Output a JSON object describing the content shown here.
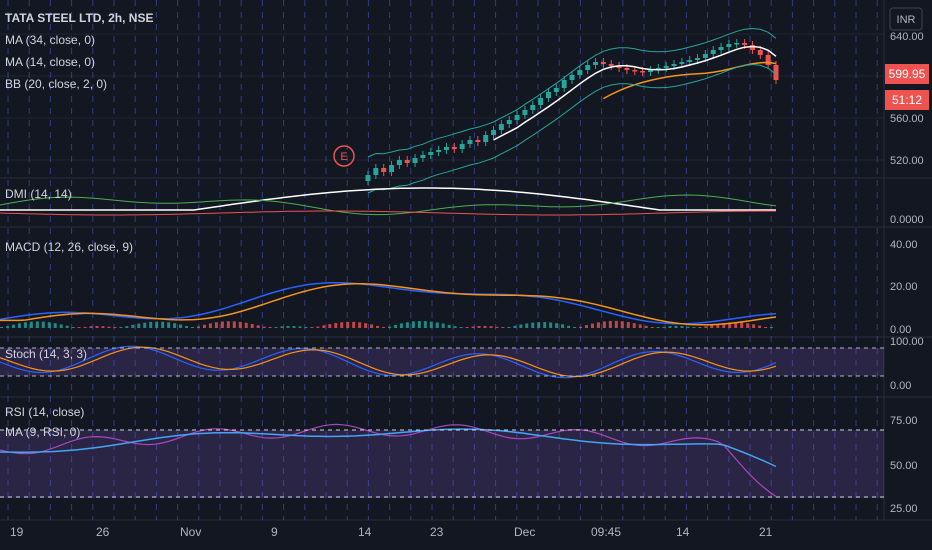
{
  "colors": {
    "bg": "#131722",
    "grid": "#2a2e39",
    "session": "#4a5bd6",
    "up": "#26a69a",
    "down": "#ef5350",
    "orange": "#f7931a",
    "blue": "#2962ff",
    "purple": "#7e57c2",
    "white": "#ffffff"
  },
  "chart_data": [
    {
      "type": "candlestick",
      "title": "TATA STEEL LTD, 2h, NSE",
      "indicators": [
        "MA (34, close, 0)",
        "MA (14, close, 0)",
        "BB (20, close, 2, 0)"
      ],
      "currency": "INR",
      "ylim": [
        500,
        650
      ],
      "yticks": [
        "640.00",
        "560.00",
        "520.00"
      ],
      "last_price": "599.95",
      "countdown": "51:12",
      "marker": "E",
      "closes": [
        505,
        512,
        508,
        515,
        520,
        517,
        522,
        525,
        528,
        530,
        533,
        531,
        536,
        540,
        538,
        545,
        550,
        556,
        560,
        565,
        570,
        575,
        582,
        588,
        592,
        600,
        605,
        610,
        615,
        618,
        616,
        614,
        612,
        610,
        609,
        608,
        610,
        612,
        614,
        616,
        618,
        620,
        622,
        626,
        630,
        633,
        636,
        637,
        635,
        630,
        625,
        615,
        600
      ]
    },
    {
      "type": "line",
      "title": "DMI (14, 14)",
      "ylim": [
        0,
        1
      ],
      "yticks": [
        "0.0000"
      ]
    },
    {
      "type": "bar+line",
      "title": "MACD (12, 26, close, 9)",
      "ylim": [
        0,
        45
      ],
      "yticks": [
        "40.00",
        "20.00",
        "0.00"
      ]
    },
    {
      "type": "line",
      "title": "Stoch (14, 3, 3)",
      "ylim": [
        0,
        100
      ],
      "yticks": [
        "100.00",
        "0.00"
      ]
    },
    {
      "type": "line",
      "title": "RSI (14, close)",
      "subtitle": "MA (9, RSI, 0)",
      "ylim": [
        20,
        85
      ],
      "yticks": [
        "75.00",
        "50.00",
        "25.00"
      ]
    }
  ],
  "x_axis": [
    "19",
    "26",
    "Nov",
    "9",
    "14",
    "23",
    "Dec",
    "09:45",
    "14",
    "21"
  ]
}
